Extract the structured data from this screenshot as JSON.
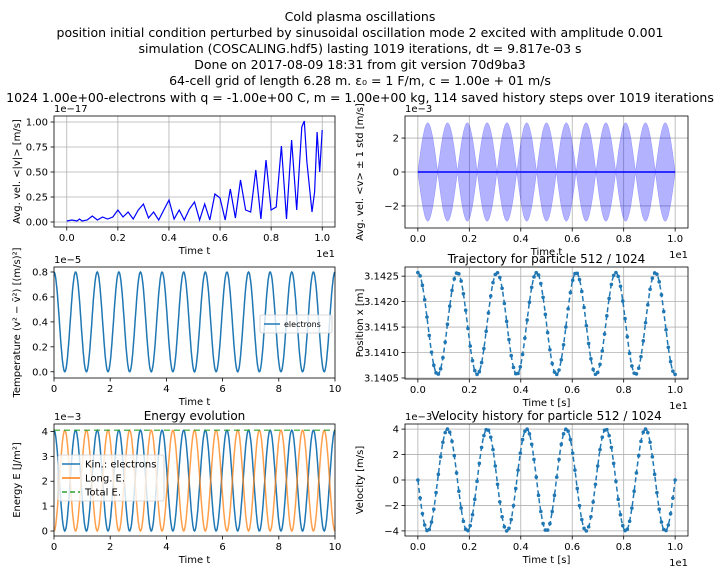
{
  "suptitle": [
    "Cold plasma oscillations",
    "position initial condition perturbed by sinusoidal oscillation mode 2 excited with amplitude 0.001",
    "simulation (COSCALING.hdf5) lasting 1019 iterations, dt = 9.817e-03 s",
    "Done on 2017-08-09 18:31 from git version 70d9ba3",
    "64-cell grid of length 6.28 m. ε₀ = 1 F/m, c = 1.00e + 01 m/s",
    "1024 1.00e+00-electrons with q = -1.00e+00 C, m = 1.00e+00 kg, 114 saved history steps over 1019 iterations"
  ],
  "colors": {
    "blue": "#0000ff",
    "c0": "#1f77b4",
    "c1": "#ff7f0e",
    "c2": "#2ca02c"
  },
  "chart_data": [
    {
      "id": "avg-abs-velocity",
      "type": "line",
      "title": "",
      "xlabel": "Time t",
      "ylabel": "Avg. vel. <|v|> [m/s]",
      "x_offset_text": "1e1",
      "y_offset_text": "1e−17",
      "xlim": [
        -0.05,
        1.05
      ],
      "ylim": [
        -0.05,
        1.06
      ],
      "xticks": [
        0.0,
        0.2,
        0.4,
        0.6,
        0.8,
        1.0
      ],
      "yticks": [
        0.0,
        0.25,
        0.5,
        0.75,
        1.0
      ],
      "xticklabels": [
        "0.0",
        "0.2",
        "0.4",
        "0.6",
        "0.8",
        "1.0"
      ],
      "yticklabels": [
        "0.00",
        "0.25",
        "0.50",
        "0.75",
        "1.00"
      ],
      "grid": true,
      "series": [
        {
          "color": "blue",
          "x": [
            0.0,
            0.02,
            0.04,
            0.05,
            0.06,
            0.08,
            0.1,
            0.12,
            0.14,
            0.16,
            0.18,
            0.2,
            0.22,
            0.24,
            0.26,
            0.28,
            0.3,
            0.32,
            0.34,
            0.36,
            0.38,
            0.4,
            0.42,
            0.44,
            0.46,
            0.48,
            0.5,
            0.52,
            0.54,
            0.56,
            0.58,
            0.6,
            0.62,
            0.64,
            0.66,
            0.68,
            0.7,
            0.72,
            0.74,
            0.76,
            0.78,
            0.8,
            0.82,
            0.84,
            0.86,
            0.88,
            0.9,
            0.92,
            0.93,
            0.94,
            0.96,
            0.97,
            0.98,
            0.99,
            1.0
          ],
          "y": [
            0.01,
            0.02,
            0.01,
            0.03,
            0.01,
            0.02,
            0.06,
            0.02,
            0.05,
            0.03,
            0.05,
            0.12,
            0.05,
            0.1,
            0.03,
            0.12,
            0.18,
            0.04,
            0.1,
            0.02,
            0.12,
            0.22,
            0.03,
            0.12,
            0.02,
            0.13,
            0.2,
            0.02,
            0.18,
            0.02,
            0.28,
            0.24,
            0.02,
            0.33,
            0.04,
            0.42,
            0.12,
            0.1,
            0.52,
            0.03,
            0.62,
            0.12,
            0.15,
            0.76,
            0.03,
            0.82,
            0.12,
            0.95,
            1.01,
            0.6,
            0.1,
            0.3,
            0.9,
            0.5,
            0.92
          ]
        }
      ]
    },
    {
      "id": "avg-velocity-std",
      "type": "area",
      "title": "",
      "xlabel": "Time t",
      "ylabel": "Avg. vel. <v> ± 1 std [m/s]",
      "x_offset_text": "1e1",
      "y_offset_text": "1e−3",
      "xlim": [
        -0.05,
        1.05
      ],
      "ylim": [
        -3.3,
        3.3
      ],
      "xticks": [
        0.0,
        0.2,
        0.4,
        0.6,
        0.8,
        1.0
      ],
      "yticks": [
        -2,
        0,
        2
      ],
      "xticklabels": [
        "0.0",
        "0.2",
        "0.4",
        "0.6",
        "0.8",
        "1.0"
      ],
      "yticklabels": [
        "−2",
        "0",
        "2"
      ],
      "grid": true,
      "band_amplitude": 2.9,
      "band_lobes": 13,
      "mean_value": 0.0,
      "series": [
        {
          "color": "blue"
        }
      ]
    },
    {
      "id": "temperature",
      "type": "line",
      "title": "",
      "xlabel": "Time t",
      "ylabel": "Temperature (v² − v̄²) [(m/s)²]",
      "x_offset_text": "",
      "y_offset_text": "1e−5",
      "xlim": [
        0,
        10
      ],
      "ylim": [
        -0.05,
        0.84
      ],
      "xticks": [
        0,
        2,
        4,
        6,
        8,
        10
      ],
      "yticks": [
        0.0,
        0.2,
        0.4,
        0.6,
        0.8
      ],
      "xticklabels": [
        "0",
        "2",
        "4",
        "6",
        "8",
        "10"
      ],
      "yticklabels": [
        "0.0",
        "0.2",
        "0.4",
        "0.6",
        "0.8"
      ],
      "grid": false,
      "legend": {
        "placement": "center-right",
        "entries": [
          "electrons"
        ]
      },
      "amplitude": 0.8,
      "periods": 13,
      "phase": "peak-at-zero",
      "series": [
        {
          "name": "electrons",
          "color": "c0"
        }
      ]
    },
    {
      "id": "trajectory",
      "type": "line",
      "title": "Trajectory for particle 512 / 1024",
      "xlabel": "Time t [s]",
      "ylabel": "Position x [m]",
      "x_offset_text": "1e1",
      "y_offset_text": "",
      "xlim": [
        -0.05,
        1.05
      ],
      "ylim": [
        3.14048,
        3.14268
      ],
      "xticks": [
        0.0,
        0.2,
        0.4,
        0.6,
        0.8,
        1.0
      ],
      "yticks": [
        3.1405,
        3.141,
        3.1415,
        3.142,
        3.1425
      ],
      "xticklabels": [
        "0.0",
        "0.2",
        "0.4",
        "0.6",
        "0.8",
        "1.0"
      ],
      "yticklabels": [
        "3.1405",
        "3.1410",
        "3.1415",
        "3.1420",
        "3.1425"
      ],
      "grid": true,
      "center": 3.14157,
      "amplitude": 0.001,
      "periods": 6.5,
      "phase": "peak-at-zero",
      "marker_count": 114,
      "series": [
        {
          "color": "c0",
          "style": "dashed-dots"
        }
      ]
    },
    {
      "id": "energy",
      "type": "line",
      "title": "Energy evolution",
      "xlabel": "Time t",
      "ylabel": "Energy E [J/m²]",
      "x_offset_text": "",
      "y_offset_text": "1e−3",
      "xlim": [
        0,
        10
      ],
      "ylim": [
        -0.2,
        4.3
      ],
      "xticks": [
        0,
        2,
        4,
        6,
        8,
        10
      ],
      "yticks": [
        0,
        1,
        2,
        3,
        4
      ],
      "xticklabels": [
        "0",
        "2",
        "4",
        "6",
        "8",
        "10"
      ],
      "yticklabels": [
        "0",
        "1",
        "2",
        "3",
        "4"
      ],
      "grid": false,
      "legend": {
        "placement": "center-left",
        "entries": [
          "Kin.: electrons",
          "Long. E.",
          "Total E."
        ]
      },
      "total": 4.05,
      "periods": 13,
      "series": [
        {
          "name": "Kin.: electrons",
          "color": "c0",
          "phase": "peak-at-zero"
        },
        {
          "name": "Long. E.",
          "color": "c1",
          "phase": "zero-at-zero"
        },
        {
          "name": "Total E.",
          "color": "c2",
          "style": "dashed"
        }
      ]
    },
    {
      "id": "velocity-history",
      "type": "line",
      "title": "Velocity history for particle 512 / 1024",
      "xlabel": "Time t [s]",
      "ylabel": "Velocity [m/s]",
      "x_offset_text": "1e1",
      "y_offset_text": "1e−3",
      "xlim": [
        -0.05,
        1.05
      ],
      "ylim": [
        -4.4,
        4.4
      ],
      "xticks": [
        0.0,
        0.2,
        0.4,
        0.6,
        0.8,
        1.0
      ],
      "yticks": [
        -4,
        -2,
        0,
        2,
        4
      ],
      "xticklabels": [
        "0.0",
        "0.2",
        "0.4",
        "0.6",
        "0.8",
        "1.0"
      ],
      "yticklabels": [
        "−4",
        "−2",
        "0",
        "2",
        "4"
      ],
      "grid": true,
      "amplitude": 4.0,
      "periods": 6.5,
      "phase": "zero-at-zero-going-down",
      "marker_count": 114,
      "series": [
        {
          "color": "c0",
          "style": "dashed-dots"
        }
      ]
    }
  ]
}
